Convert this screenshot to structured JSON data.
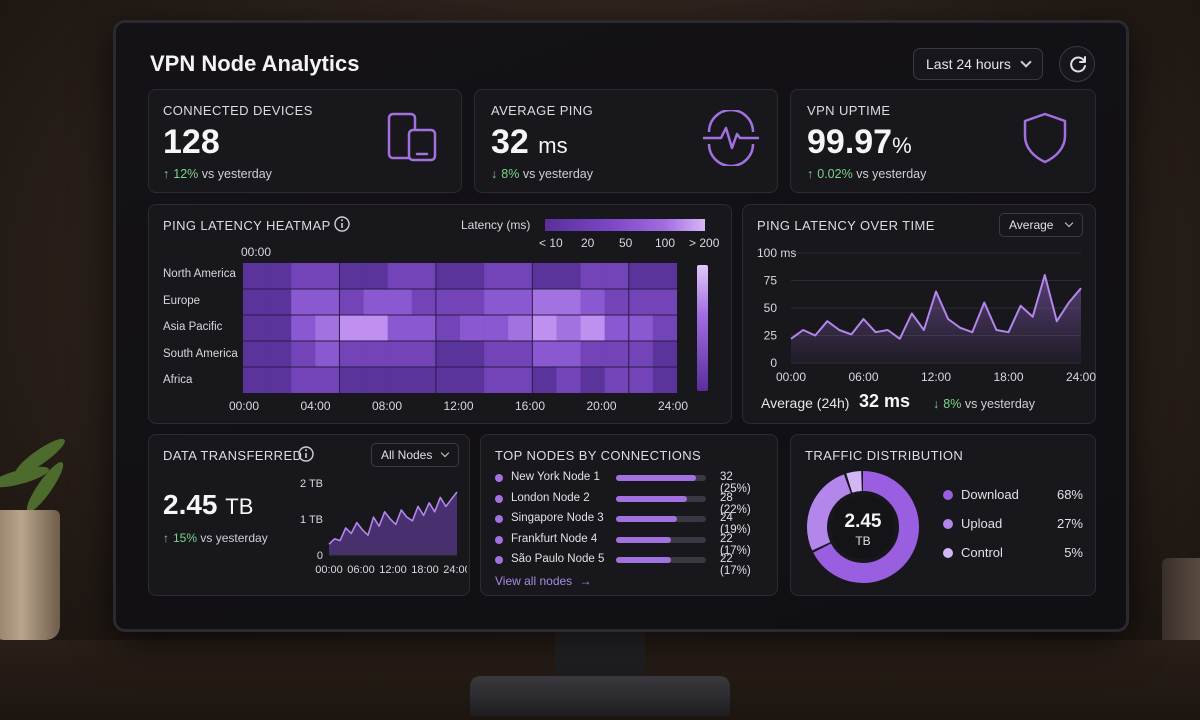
{
  "app": {
    "title": "VPN Node Analytics"
  },
  "header": {
    "range_label": "Last 24 hours"
  },
  "colors": {
    "accent": "#a271e0",
    "positive": "#7ad48a",
    "card": "#18171c"
  },
  "stats": [
    {
      "label": "CONNECTED DEVICES",
      "value": "128",
      "unit": "",
      "arrow": "↑",
      "delta": "12%",
      "delta_text": "vs yesterday",
      "icon": "devices-icon"
    },
    {
      "label": "AVERAGE PING",
      "value": "32",
      "unit": "ms",
      "arrow": "↓",
      "delta": "8%",
      "delta_text": "vs yesterday",
      "icon": "pulse-icon"
    },
    {
      "label": "VPN UPTIME",
      "value": "99.97",
      "unit": "%",
      "arrow": "↑",
      "delta": "0.02%",
      "delta_text": "vs yesterday",
      "icon": "shield-icon"
    }
  ],
  "heatmap": {
    "title": "PING LATENCY HEATMAP",
    "legend_title": "Latency (ms)",
    "legend_ticks": [
      "< 10",
      "20",
      "50",
      "100",
      "> 200"
    ],
    "top_time": "00:00",
    "rows": [
      "North America",
      "Europe",
      "Asia Pacific",
      "South America",
      "Africa"
    ],
    "x_ticks": [
      "00:00",
      "04:00",
      "08:00",
      "12:00",
      "16:00",
      "20:00",
      "24:00"
    ],
    "levels": [
      [
        1,
        1,
        2,
        2,
        1,
        1,
        2,
        2,
        1,
        1,
        2,
        2,
        1,
        1,
        2,
        2,
        1,
        1
      ],
      [
        1,
        1,
        3,
        3,
        2,
        3,
        3,
        2,
        2,
        2,
        3,
        3,
        4,
        4,
        3,
        2,
        2,
        2
      ],
      [
        1,
        1,
        3,
        4,
        5,
        5,
        3,
        3,
        2,
        3,
        3,
        4,
        5,
        4,
        5,
        3,
        3,
        2
      ],
      [
        1,
        1,
        2,
        3,
        2,
        2,
        2,
        2,
        1,
        1,
        2,
        2,
        3,
        3,
        2,
        2,
        2,
        1
      ],
      [
        1,
        1,
        2,
        2,
        1,
        1,
        1,
        1,
        1,
        1,
        2,
        2,
        1,
        2,
        1,
        2,
        2,
        1
      ]
    ]
  },
  "ping_over_time": {
    "title": "PING LATENCY OVER TIME",
    "select_label": "Average",
    "avg_label": "Average (24h)",
    "avg_value": "32 ms",
    "arrow": "↓",
    "delta": "8%",
    "delta_text": "vs yesterday"
  },
  "data_transferred": {
    "title": "DATA TRANSFERRED",
    "select_label": "All Nodes",
    "value": "2.45",
    "unit": "TB",
    "arrow": "↑",
    "delta": "15%",
    "delta_text": "vs yesterday"
  },
  "top_nodes": {
    "title": "TOP NODES BY CONNECTIONS",
    "link_label": "View all nodes",
    "items": [
      {
        "name": "New York Node 1",
        "count": "32 (25%)",
        "share": 0.25
      },
      {
        "name": "London Node 2",
        "count": "28 (22%)",
        "share": 0.22
      },
      {
        "name": "Singapore Node 3",
        "count": "24 (19%)",
        "share": 0.19
      },
      {
        "name": "Frankfurt Node 4",
        "count": "22 (17%)",
        "share": 0.17
      },
      {
        "name": "São Paulo Node 5",
        "count": "22 (17%)",
        "share": 0.17
      }
    ]
  },
  "traffic": {
    "title": "TRAFFIC DISTRIBUTION",
    "center_value": "2.45",
    "center_unit": "TB",
    "items": [
      {
        "name": "Download",
        "value": "68%",
        "share": 0.68,
        "color": "#9a5ee0"
      },
      {
        "name": "Upload",
        "value": "27%",
        "share": 0.27,
        "color": "#b386ec"
      },
      {
        "name": "Control",
        "value": "5%",
        "share": 0.05,
        "color": "#d2b6f5"
      }
    ]
  },
  "chart_data": [
    {
      "type": "line",
      "x": [
        "00:00",
        "01:00",
        "02:00",
        "03:00",
        "04:00",
        "05:00",
        "06:00",
        "07:00",
        "08:00",
        "09:00",
        "10:00",
        "11:00",
        "12:00",
        "13:00",
        "14:00",
        "15:00",
        "16:00",
        "17:00",
        "18:00",
        "19:00",
        "20:00",
        "21:00",
        "22:00",
        "23:00",
        "24:00"
      ],
      "x_ticks": [
        "00:00",
        "06:00",
        "12:00",
        "18:00",
        "24:00"
      ],
      "y_ticks": [
        "0",
        "25",
        "50",
        "75",
        "100 ms"
      ],
      "ylim": [
        0,
        100
      ],
      "series": [
        {
          "values": [
            22,
            30,
            25,
            38,
            30,
            26,
            40,
            28,
            30,
            22,
            45,
            30,
            65,
            40,
            32,
            28,
            55,
            30,
            28,
            52,
            42,
            80,
            38,
            55,
            68
          ]
        }
      ]
    },
    {
      "type": "area",
      "x_ticks": [
        "00:00",
        "06:00",
        "12:00",
        "18:00",
        "24:00"
      ],
      "y_ticks": [
        "0",
        "1 TB",
        "2 TB"
      ],
      "ylim": [
        0,
        2
      ],
      "series": [
        {
          "values": [
            0.3,
            0.45,
            0.4,
            0.75,
            0.6,
            0.9,
            0.7,
            0.55,
            1.05,
            0.8,
            1.2,
            1.0,
            0.85,
            1.25,
            1.05,
            0.95,
            1.35,
            1.1,
            1.45,
            1.2,
            1.6,
            1.35,
            1.55,
            1.75
          ]
        }
      ]
    }
  ]
}
